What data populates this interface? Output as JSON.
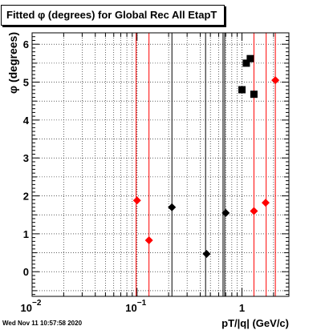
{
  "chart_data": {
    "type": "scatter",
    "title": "Fitted φ (degrees) for Global Rec All EtapT",
    "xlabel": "pT/|q| (GeV/c)",
    "ylabel": "φ (degrees)",
    "xscale": "log",
    "xlim": [
      0.01,
      2.8
    ],
    "ylim": [
      -0.65,
      6.3
    ],
    "grid": true,
    "x_ticks": [
      {
        "value": 0.01,
        "base": "10",
        "exp": "−2"
      },
      {
        "value": 0.1,
        "base": "10",
        "exp": "−1"
      },
      {
        "value": 1,
        "base": "1",
        "exp": ""
      }
    ],
    "y_ticks": [
      "0",
      "1",
      "2",
      "3",
      "4",
      "5",
      "6"
    ],
    "series": [
      {
        "marker": "square",
        "color": "#000000",
        "points": [
          {
            "x": 1.0,
            "y": 4.8
          },
          {
            "x": 1.1,
            "y": 5.5
          },
          {
            "x": 1.2,
            "y": 5.62
          },
          {
            "x": 1.3,
            "y": 4.68
          }
        ]
      },
      {
        "marker": "diamond",
        "color": "#000000",
        "points": [
          {
            "x": 0.215,
            "y": 1.7
          },
          {
            "x": 0.46,
            "y": 0.47
          },
          {
            "x": 0.7,
            "y": 1.55
          }
        ]
      },
      {
        "marker": "diamond",
        "color": "#ff0000",
        "points": [
          {
            "x": 0.1,
            "y": 1.88
          },
          {
            "x": 0.13,
            "y": 0.83
          },
          {
            "x": 1.3,
            "y": 1.6
          },
          {
            "x": 1.68,
            "y": 1.82
          },
          {
            "x": 2.08,
            "y": 5.05
          }
        ]
      }
    ],
    "vertical_lines": [
      {
        "x": 0.098,
        "color": "#ff0000"
      },
      {
        "x": 0.13,
        "color": "#ff0000"
      },
      {
        "x": 0.215,
        "color": "#000000"
      },
      {
        "x": 0.45,
        "color": "#000000"
      },
      {
        "x": 0.66,
        "color": "#000000"
      },
      {
        "x": 0.685,
        "color": "#000000"
      },
      {
        "x": 1.3,
        "color": "#ff0000"
      },
      {
        "x": 1.7,
        "color": "#ff0000"
      },
      {
        "x": 2.08,
        "color": "#ff0000"
      }
    ]
  },
  "footer": {
    "timestamp": "Wed Nov 11 10:57:58 2020"
  }
}
